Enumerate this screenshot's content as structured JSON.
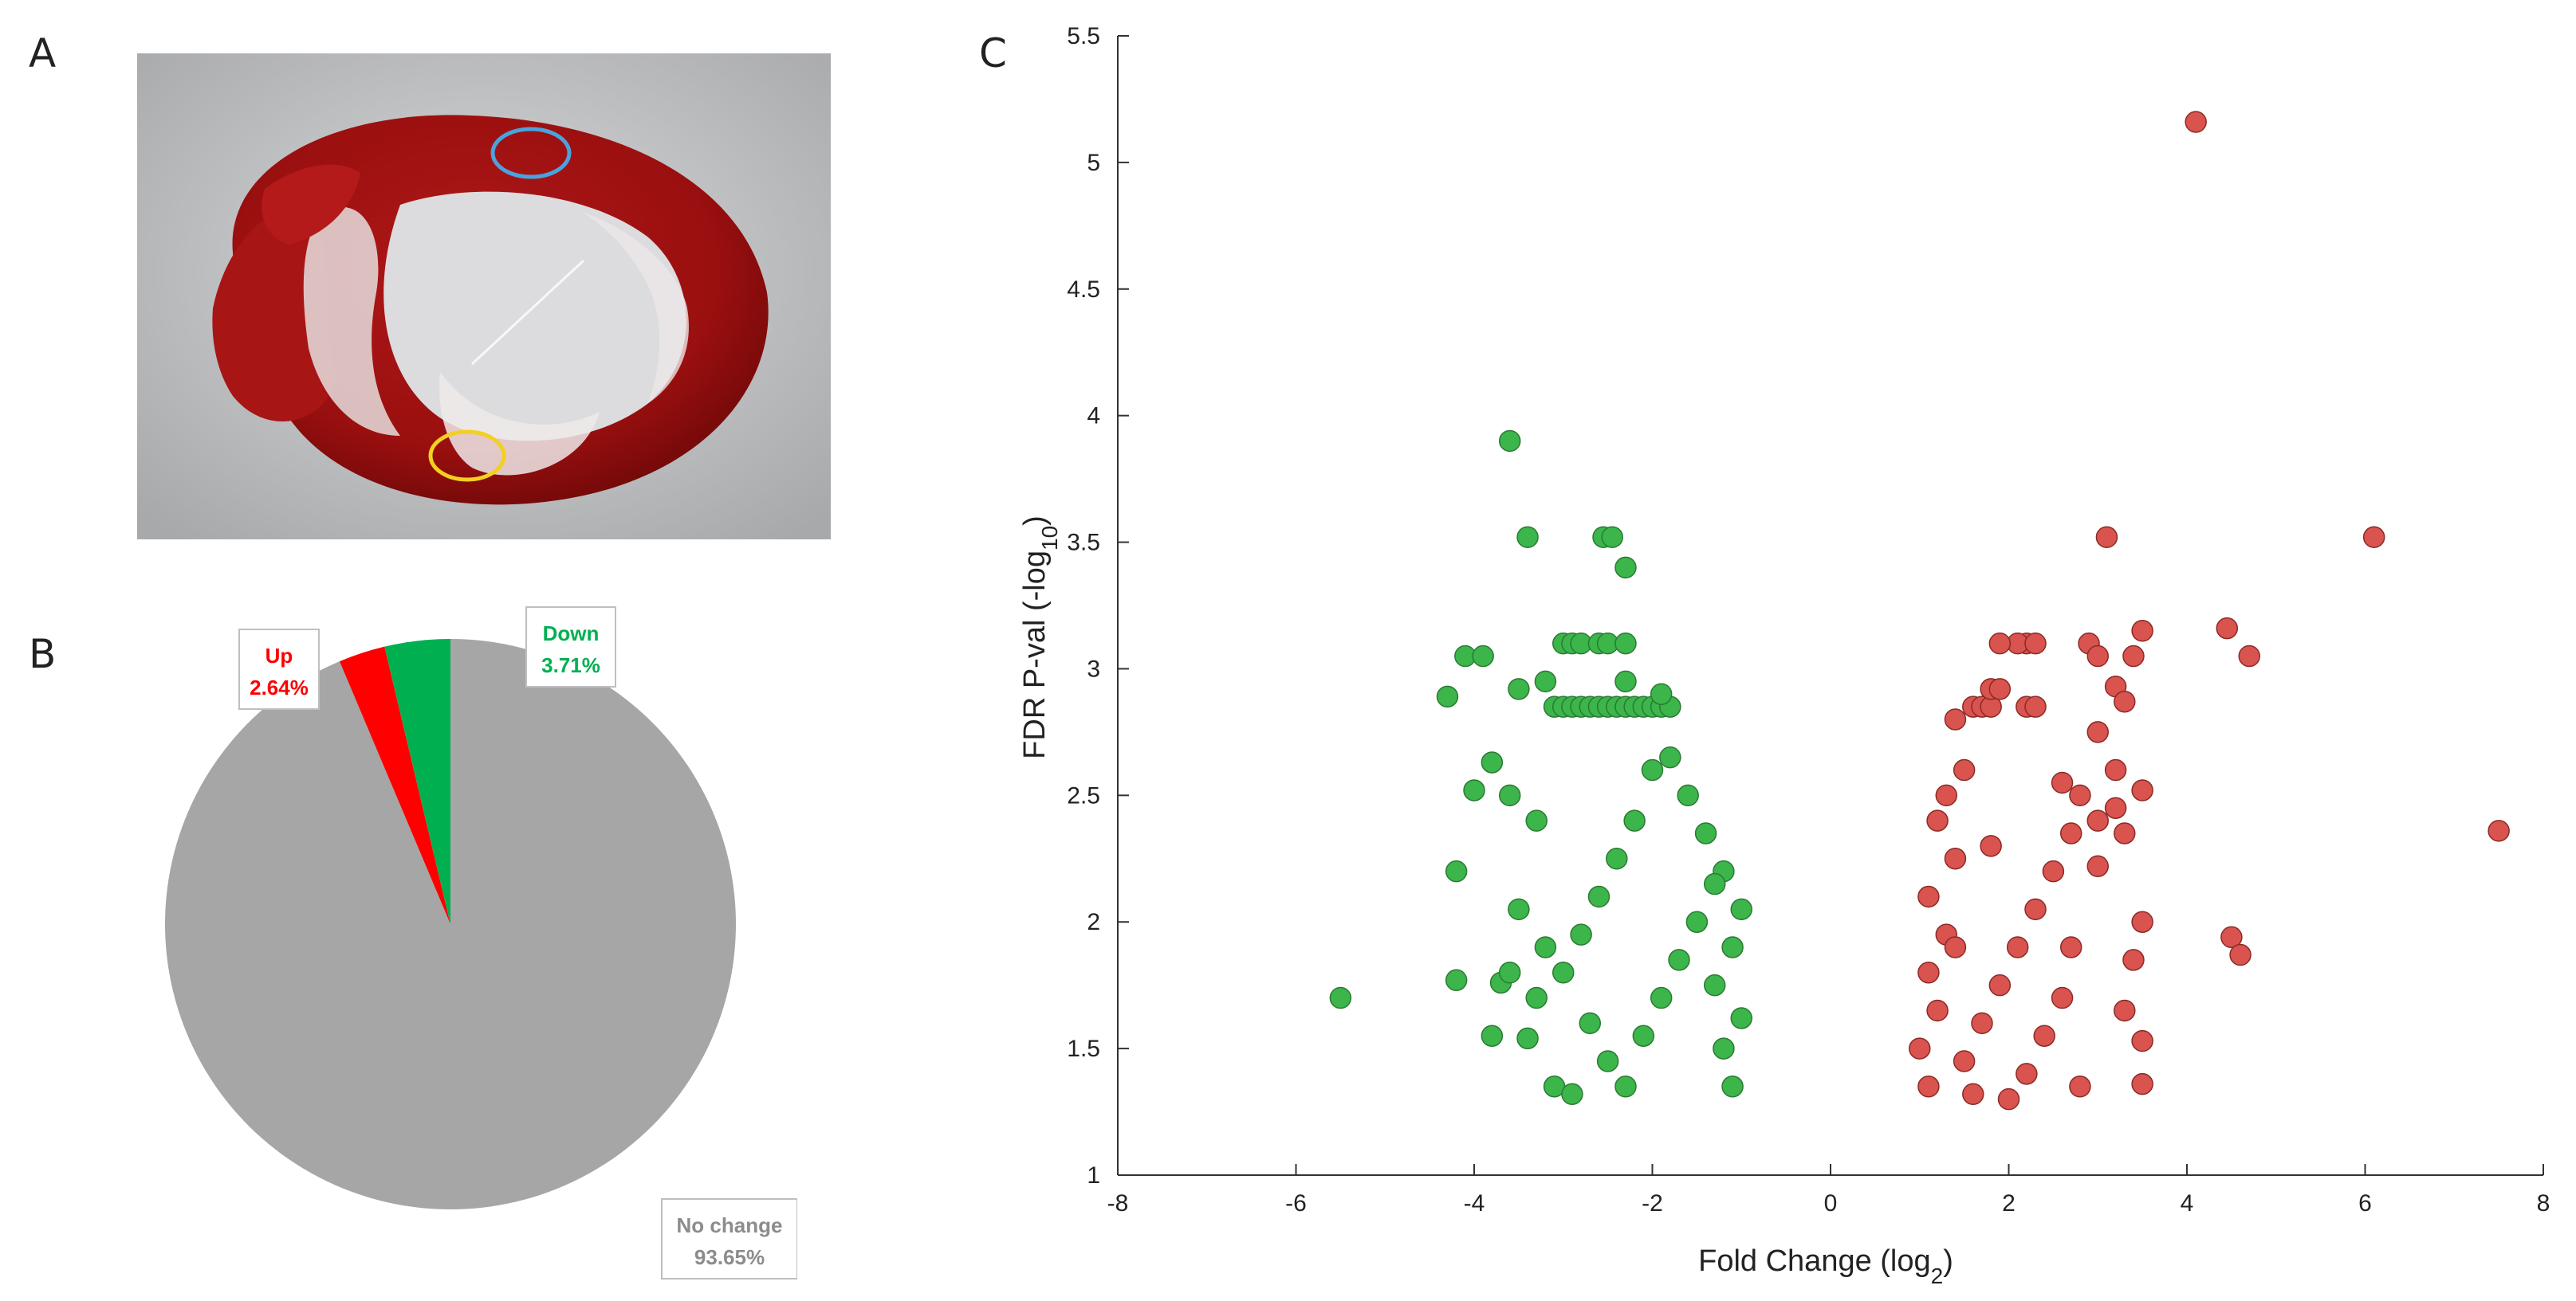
{
  "panels": {
    "a": "A",
    "b": "B",
    "c": "C"
  },
  "colors": {
    "up": "#ff0000",
    "down": "#00b050",
    "nochange": "#a6a6a6",
    "up_point": "#d9534f",
    "down_point": "#3cb54a",
    "up_label": "#ff0000",
    "down_label": "#00b050",
    "nochange_label": "#8c8c8c"
  },
  "chart_data": [
    {
      "type": "pie",
      "slices": [
        {
          "name": "Up",
          "label": "Up",
          "value": 2.64,
          "value_label": "2.64%"
        },
        {
          "name": "Down",
          "label": "Down",
          "value": 3.71,
          "value_label": "3.71%"
        },
        {
          "name": "No change",
          "label": "No change",
          "value": 93.65,
          "value_label": "93.65%"
        }
      ]
    },
    {
      "type": "scatter",
      "xlabel": "Fold Change (log",
      "xlabel_sub": "2",
      "xlabel_end": ")",
      "ylabel": "FDR P-val (-log",
      "ylabel_sub": "10",
      "ylabel_end": ")",
      "xlim": [
        -8,
        8
      ],
      "ylim": [
        1,
        5.5
      ],
      "xticks": [
        -8,
        -6,
        -4,
        -2,
        0,
        2,
        4,
        6,
        8
      ],
      "yticks": [
        1,
        1.5,
        2,
        2.5,
        3,
        3.5,
        4,
        4.5,
        5,
        5.5
      ],
      "series": [
        {
          "name": "Down",
          "points": [
            [
              -5.5,
              1.7
            ],
            [
              -4.3,
              2.89
            ],
            [
              -4.1,
              3.05
            ],
            [
              -3.9,
              3.05
            ],
            [
              -4.2,
              2.2
            ],
            [
              -4.2,
              1.77
            ],
            [
              -4.0,
              2.52
            ],
            [
              -3.8,
              2.63
            ],
            [
              -3.7,
              1.76
            ],
            [
              -3.8,
              1.55
            ],
            [
              -3.6,
              3.9
            ],
            [
              -3.4,
              3.52
            ],
            [
              -3.5,
              2.92
            ],
            [
              -3.6,
              2.5
            ],
            [
              -3.4,
              1.54
            ],
            [
              -3.3,
              2.4
            ],
            [
              -3.0,
              3.1
            ],
            [
              -2.9,
              3.1
            ],
            [
              -2.8,
              3.1
            ],
            [
              -2.6,
              3.1
            ],
            [
              -2.5,
              3.1
            ],
            [
              -2.3,
              3.1
            ],
            [
              -2.55,
              3.52
            ],
            [
              -2.45,
              3.52
            ],
            [
              -2.3,
              3.4
            ],
            [
              -3.1,
              2.85
            ],
            [
              -3.0,
              2.85
            ],
            [
              -2.9,
              2.85
            ],
            [
              -2.8,
              2.85
            ],
            [
              -2.7,
              2.85
            ],
            [
              -2.6,
              2.85
            ],
            [
              -2.5,
              2.85
            ],
            [
              -2.4,
              2.85
            ],
            [
              -2.3,
              2.85
            ],
            [
              -2.2,
              2.85
            ],
            [
              -2.1,
              2.85
            ],
            [
              -2.0,
              2.85
            ],
            [
              -1.9,
              2.85
            ],
            [
              -1.8,
              2.85
            ],
            [
              -3.2,
              2.95
            ],
            [
              -2.3,
              2.95
            ],
            [
              -1.9,
              2.9
            ],
            [
              -3.6,
              1.8
            ],
            [
              -3.5,
              2.05
            ],
            [
              -3.3,
              1.7
            ],
            [
              -3.1,
              1.35
            ],
            [
              -2.9,
              1.32
            ],
            [
              -3.2,
              1.9
            ],
            [
              -1.1,
              1.35
            ],
            [
              -1.2,
              1.5
            ],
            [
              -1.0,
              1.62
            ],
            [
              -1.3,
              1.75
            ],
            [
              -1.1,
              1.9
            ],
            [
              -1.0,
              2.05
            ],
            [
              -1.2,
              2.2
            ],
            [
              -1.4,
              2.35
            ],
            [
              -1.6,
              2.5
            ],
            [
              -1.8,
              2.65
            ],
            [
              -2.0,
              2.6
            ],
            [
              -2.2,
              2.4
            ],
            [
              -2.4,
              2.25
            ],
            [
              -2.6,
              2.1
            ],
            [
              -2.8,
              1.95
            ],
            [
              -3.0,
              1.8
            ],
            [
              -2.7,
              1.6
            ],
            [
              -2.5,
              1.45
            ],
            [
              -2.3,
              1.35
            ],
            [
              -2.1,
              1.55
            ],
            [
              -1.9,
              1.7
            ],
            [
              -1.7,
              1.85
            ],
            [
              -1.5,
              2.0
            ],
            [
              -1.3,
              2.15
            ]
          ]
        },
        {
          "name": "Up",
          "points": [
            [
              4.1,
              5.16
            ],
            [
              3.1,
              3.52
            ],
            [
              6.1,
              3.52
            ],
            [
              7.5,
              2.36
            ],
            [
              4.45,
              3.16
            ],
            [
              4.7,
              3.05
            ],
            [
              4.5,
              1.94
            ],
            [
              4.6,
              1.87
            ],
            [
              3.5,
              3.15
            ],
            [
              3.4,
              3.05
            ],
            [
              2.9,
              3.1
            ],
            [
              3.0,
              3.05
            ],
            [
              3.2,
              2.93
            ],
            [
              3.3,
              2.87
            ],
            [
              3.0,
              2.75
            ],
            [
              3.2,
              2.6
            ],
            [
              3.5,
              2.52
            ],
            [
              3.2,
              2.45
            ],
            [
              3.0,
              2.4
            ],
            [
              3.3,
              2.35
            ],
            [
              3.0,
              2.22
            ],
            [
              3.5,
              2.0
            ],
            [
              3.4,
              1.85
            ],
            [
              3.3,
              1.65
            ],
            [
              3.5,
              1.53
            ],
            [
              3.5,
              1.36
            ],
            [
              2.2,
              3.1
            ],
            [
              2.1,
              3.1
            ],
            [
              2.3,
              3.1
            ],
            [
              1.9,
              3.1
            ],
            [
              1.6,
              2.85
            ],
            [
              1.7,
              2.85
            ],
            [
              1.8,
              2.85
            ],
            [
              2.2,
              2.85
            ],
            [
              2.3,
              2.85
            ],
            [
              1.8,
              2.92
            ],
            [
              1.9,
              2.92
            ],
            [
              1.4,
              2.8
            ],
            [
              1.5,
              2.6
            ],
            [
              1.3,
              2.5
            ],
            [
              1.2,
              2.4
            ],
            [
              1.4,
              2.25
            ],
            [
              1.1,
              2.1
            ],
            [
              1.3,
              1.95
            ],
            [
              1.1,
              1.8
            ],
            [
              1.2,
              1.65
            ],
            [
              1.0,
              1.5
            ],
            [
              1.1,
              1.35
            ],
            [
              1.5,
              1.45
            ],
            [
              1.7,
              1.6
            ],
            [
              1.9,
              1.75
            ],
            [
              2.1,
              1.9
            ],
            [
              2.3,
              2.05
            ],
            [
              2.5,
              2.2
            ],
            [
              2.7,
              2.35
            ],
            [
              2.8,
              2.5
            ],
            [
              2.6,
              1.7
            ],
            [
              2.4,
              1.55
            ],
            [
              2.2,
              1.4
            ],
            [
              2.8,
              1.35
            ],
            [
              2.0,
              1.3
            ],
            [
              1.6,
              1.32
            ],
            [
              1.4,
              1.9
            ],
            [
              1.8,
              2.3
            ],
            [
              2.6,
              2.55
            ],
            [
              2.7,
              1.9
            ]
          ]
        }
      ]
    }
  ]
}
